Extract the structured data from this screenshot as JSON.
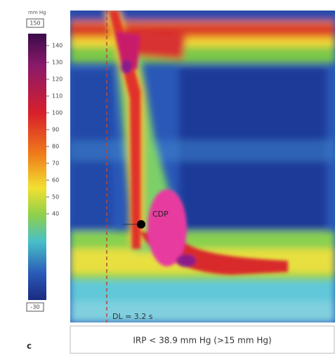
{
  "colorbar": {
    "unit": "mm Hg",
    "top_box": "150",
    "bottom_box": "-30",
    "ticks": [
      140,
      130,
      120,
      110,
      100,
      90,
      80,
      70,
      60,
      50,
      40
    ]
  },
  "annotations": {
    "cdp": "CDP",
    "dl": "DL = 3.2 s"
  },
  "footer": {
    "irp": "IRP < 38.9 mm Hg (>15 mm Hg)",
    "panel": "c"
  }
}
